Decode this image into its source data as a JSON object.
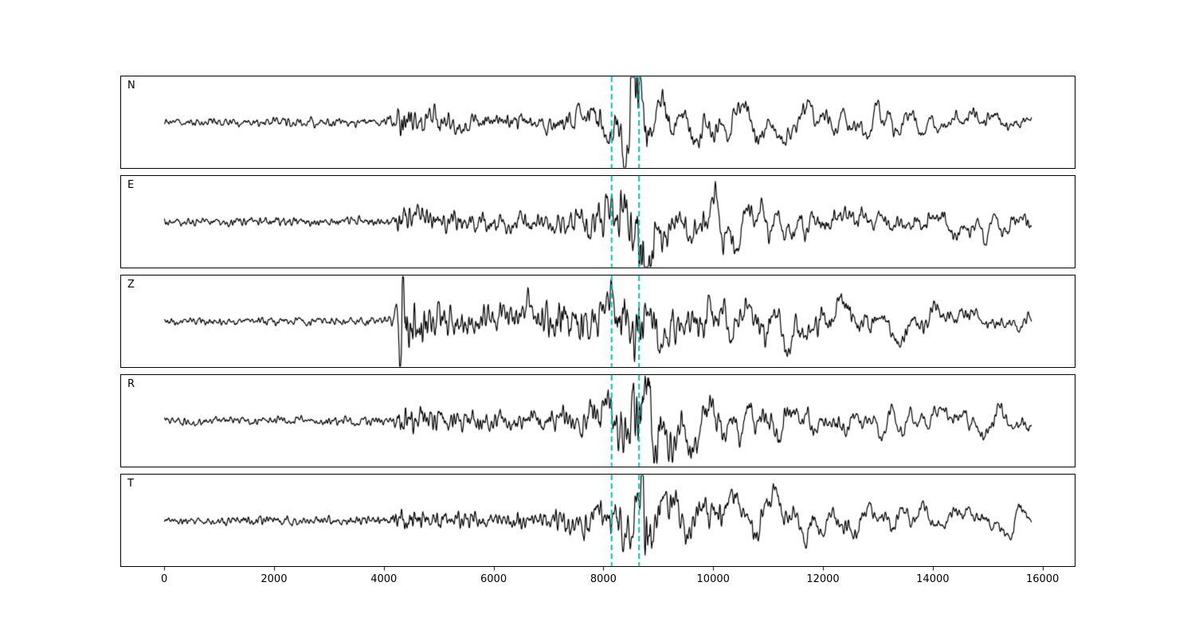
{
  "figure": {
    "background": "#ffffff",
    "trace_color": "#000000",
    "vline_color": "#00bfbf"
  },
  "chart_data": {
    "type": "line",
    "title": "",
    "xlabel": "",
    "ylabel": "",
    "xlim": [
      -800,
      16600
    ],
    "x_range": [
      0,
      15800
    ],
    "xticks": [
      "0",
      "2000",
      "4000",
      "6000",
      "8000",
      "10000",
      "12000",
      "14000",
      "16000"
    ],
    "xtick_values": [
      0,
      2000,
      4000,
      6000,
      8000,
      10000,
      12000,
      14000,
      16000
    ],
    "grid": false,
    "legend": "none",
    "vlines": {
      "positions": [
        8150,
        8650
      ],
      "color": "#00bfbf",
      "style": "dashed",
      "width": 2
    },
    "panels": [
      {
        "label": "N",
        "seed": 11,
        "envelope": [
          [
            0,
            2.5
          ],
          [
            4150,
            3
          ],
          [
            4280,
            9
          ],
          [
            4600,
            8
          ],
          [
            5200,
            7
          ],
          [
            6000,
            5.5
          ],
          [
            6800,
            6
          ],
          [
            7400,
            9
          ],
          [
            7900,
            12
          ],
          [
            8250,
            16
          ],
          [
            8420,
            30
          ],
          [
            8520,
            45
          ],
          [
            8650,
            38
          ],
          [
            8800,
            26
          ],
          [
            9100,
            22
          ],
          [
            9600,
            18
          ],
          [
            10200,
            15
          ],
          [
            11000,
            14
          ],
          [
            12000,
            12.5
          ],
          [
            13000,
            12
          ],
          [
            14000,
            11
          ],
          [
            15000,
            10
          ],
          [
            15800,
            8
          ]
        ],
        "hf_weight": [
          [
            0,
            0.85
          ],
          [
            4200,
            0.85
          ],
          [
            4300,
            0.8
          ],
          [
            5500,
            0.7
          ],
          [
            7000,
            0.6
          ],
          [
            8000,
            0.5
          ],
          [
            8600,
            0.4
          ],
          [
            9500,
            0.3
          ],
          [
            11000,
            0.28
          ],
          [
            15800,
            0.26
          ]
        ]
      },
      {
        "label": "E",
        "seed": 23,
        "envelope": [
          [
            0,
            2.5
          ],
          [
            4150,
            3
          ],
          [
            4280,
            10
          ],
          [
            4700,
            9
          ],
          [
            5400,
            7
          ],
          [
            6200,
            5.5
          ],
          [
            7000,
            7
          ],
          [
            7600,
            11
          ],
          [
            8100,
            16
          ],
          [
            8400,
            28
          ],
          [
            8600,
            48
          ],
          [
            8750,
            40
          ],
          [
            9000,
            26
          ],
          [
            9400,
            24
          ],
          [
            10000,
            20
          ],
          [
            10800,
            18
          ],
          [
            11600,
            15
          ],
          [
            12500,
            13
          ],
          [
            13500,
            12
          ],
          [
            14500,
            11
          ],
          [
            15300,
            13
          ],
          [
            15800,
            10
          ]
        ],
        "hf_weight": [
          [
            0,
            0.85
          ],
          [
            4200,
            0.85
          ],
          [
            4300,
            0.8
          ],
          [
            5500,
            0.7
          ],
          [
            7000,
            0.6
          ],
          [
            8000,
            0.5
          ],
          [
            8600,
            0.4
          ],
          [
            9500,
            0.3
          ],
          [
            11000,
            0.28
          ],
          [
            15800,
            0.26
          ]
        ]
      },
      {
        "label": "Z",
        "seed": 37,
        "envelope": [
          [
            0,
            2.5
          ],
          [
            4180,
            3
          ],
          [
            4260,
            20
          ],
          [
            4330,
            50
          ],
          [
            4450,
            28
          ],
          [
            4700,
            16
          ],
          [
            5200,
            12
          ],
          [
            6000,
            10
          ],
          [
            6600,
            11
          ],
          [
            7200,
            15
          ],
          [
            7700,
            17
          ],
          [
            8100,
            16
          ],
          [
            8350,
            22
          ],
          [
            8550,
            28
          ],
          [
            8800,
            22
          ],
          [
            9300,
            18
          ],
          [
            10000,
            17
          ],
          [
            11000,
            16
          ],
          [
            12000,
            15
          ],
          [
            13000,
            14
          ],
          [
            14000,
            12
          ],
          [
            15000,
            10
          ],
          [
            15800,
            9
          ]
        ],
        "hf_weight": [
          [
            0,
            0.85
          ],
          [
            4200,
            0.85
          ],
          [
            4400,
            0.75
          ],
          [
            6000,
            0.65
          ],
          [
            8000,
            0.5
          ],
          [
            9000,
            0.4
          ],
          [
            11000,
            0.35
          ],
          [
            15800,
            0.3
          ]
        ]
      },
      {
        "label": "R",
        "seed": 41,
        "envelope": [
          [
            0,
            2.5
          ],
          [
            4150,
            3
          ],
          [
            4280,
            10
          ],
          [
            4700,
            9
          ],
          [
            5400,
            7
          ],
          [
            6200,
            6
          ],
          [
            7000,
            8
          ],
          [
            7600,
            12
          ],
          [
            8000,
            16
          ],
          [
            8350,
            30
          ],
          [
            8550,
            50
          ],
          [
            8700,
            42
          ],
          [
            8950,
            30
          ],
          [
            9300,
            26
          ],
          [
            9800,
            22
          ],
          [
            10500,
            20
          ],
          [
            11300,
            17
          ],
          [
            12200,
            15
          ],
          [
            13200,
            13
          ],
          [
            14200,
            12
          ],
          [
            15200,
            13
          ],
          [
            15800,
            10
          ]
        ],
        "hf_weight": [
          [
            0,
            0.85
          ],
          [
            4200,
            0.85
          ],
          [
            4300,
            0.8
          ],
          [
            5500,
            0.7
          ],
          [
            7000,
            0.6
          ],
          [
            8000,
            0.5
          ],
          [
            8600,
            0.4
          ],
          [
            9500,
            0.3
          ],
          [
            11000,
            0.28
          ],
          [
            15800,
            0.26
          ]
        ]
      },
      {
        "label": "T",
        "seed": 53,
        "envelope": [
          [
            0,
            2.5
          ],
          [
            4150,
            3
          ],
          [
            4280,
            8
          ],
          [
            4700,
            7
          ],
          [
            5400,
            6
          ],
          [
            6200,
            5.5
          ],
          [
            7000,
            7
          ],
          [
            7600,
            10
          ],
          [
            8100,
            14
          ],
          [
            8450,
            25
          ],
          [
            8700,
            38
          ],
          [
            9000,
            32
          ],
          [
            9400,
            26
          ],
          [
            10000,
            22
          ],
          [
            10800,
            18
          ],
          [
            11600,
            15
          ],
          [
            12500,
            13.5
          ],
          [
            13500,
            12
          ],
          [
            14500,
            11
          ],
          [
            15800,
            9
          ]
        ],
        "hf_weight": [
          [
            0,
            0.85
          ],
          [
            4200,
            0.85
          ],
          [
            4300,
            0.8
          ],
          [
            5500,
            0.7
          ],
          [
            7000,
            0.6
          ],
          [
            8000,
            0.5
          ],
          [
            8600,
            0.4
          ],
          [
            9500,
            0.3
          ],
          [
            11000,
            0.28
          ],
          [
            15800,
            0.26
          ]
        ]
      }
    ]
  }
}
